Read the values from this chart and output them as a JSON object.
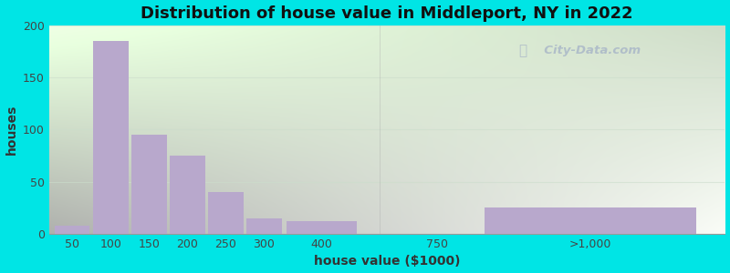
{
  "title": "Distribution of house value in Middleport, NY in 2022",
  "xlabel": "house value ($1000)",
  "ylabel": "houses",
  "bar_color": "#b8a8cc",
  "background_outer": "#00e5e5",
  "ylim": [
    0,
    200
  ],
  "yticks": [
    0,
    50,
    100,
    150,
    200
  ],
  "values": [
    8,
    185,
    95,
    75,
    40,
    15,
    12,
    0,
    25
  ],
  "bar_positions": [
    0.5,
    1.5,
    2.5,
    3.5,
    4.5,
    5.5,
    7,
    10,
    14
  ],
  "bar_widths": [
    1,
    1,
    1,
    1,
    1,
    1,
    2,
    1,
    6
  ],
  "xtick_positions": [
    0.5,
    1.5,
    2.5,
    3.5,
    4.5,
    5.5,
    7,
    10,
    14
  ],
  "xtick_labels": [
    "50",
    "100",
    "150",
    "200",
    "250",
    "300",
    "400",
    "750",
    ">1,000"
  ],
  "xlim": [
    -0.1,
    17.5
  ],
  "watermark": "City-Data.com",
  "grid_color": "#ccddcc",
  "grid_alpha": 0.6,
  "title_fontsize": 13,
  "axis_fontsize": 10,
  "tick_fontsize": 9
}
